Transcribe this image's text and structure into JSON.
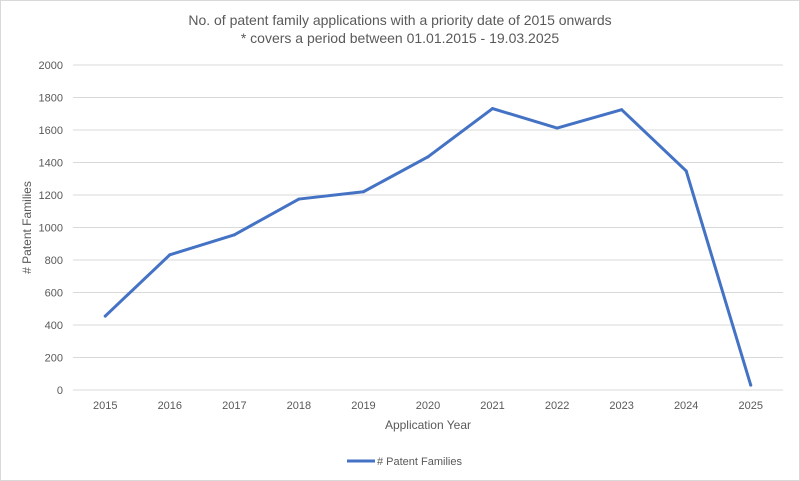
{
  "chart_data": {
    "type": "line",
    "title": "No. of patent family applications with a priority date of 2015 onwards",
    "subtitle": "* covers a period between 01.01.2015 - 19.03.2025",
    "xlabel": "Application Year",
    "ylabel": "# Patent Families",
    "categories": [
      "2015",
      "2016",
      "2017",
      "2018",
      "2019",
      "2020",
      "2021",
      "2022",
      "2023",
      "2024",
      "2025"
    ],
    "series": [
      {
        "name": "# Patent Families",
        "color": "#4472c4",
        "values": [
          455,
          832,
          955,
          1175,
          1220,
          1435,
          1732,
          1612,
          1725,
          1348,
          30
        ]
      }
    ],
    "ylim": [
      0,
      2000
    ],
    "yticks": [
      0,
      200,
      400,
      600,
      800,
      1000,
      1200,
      1400,
      1600,
      1800,
      2000
    ],
    "grid": true,
    "legend": "bottom"
  }
}
